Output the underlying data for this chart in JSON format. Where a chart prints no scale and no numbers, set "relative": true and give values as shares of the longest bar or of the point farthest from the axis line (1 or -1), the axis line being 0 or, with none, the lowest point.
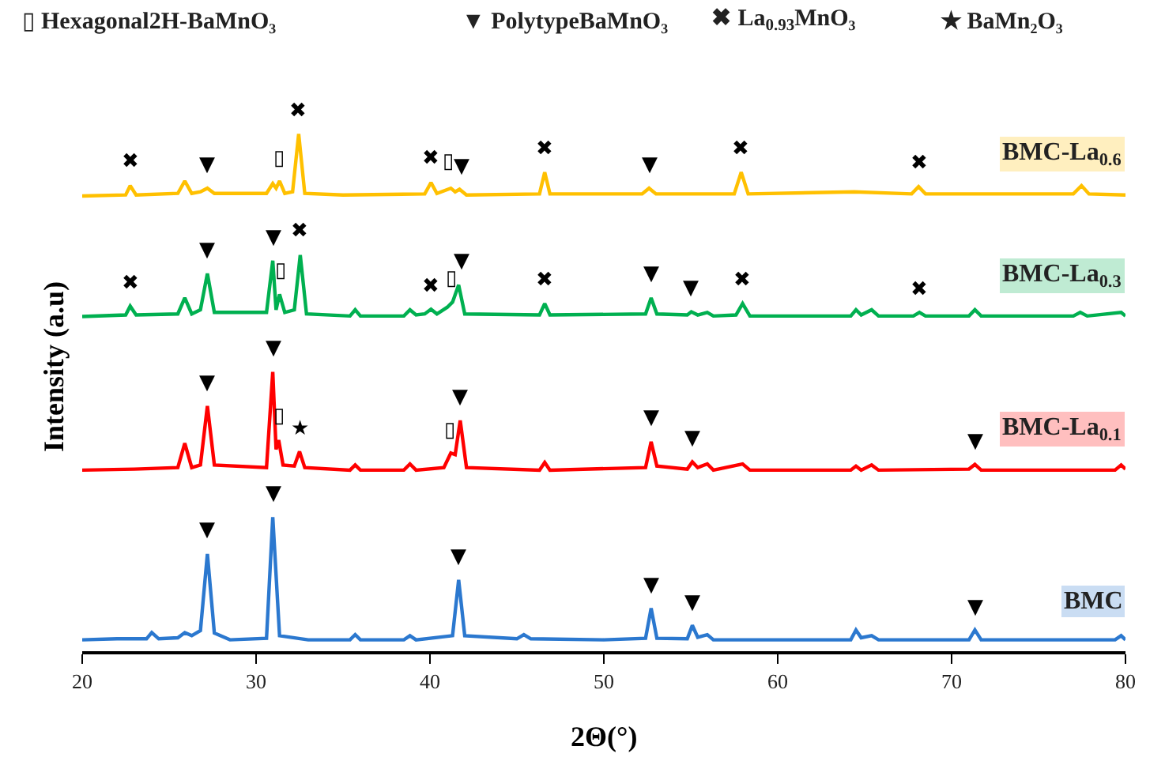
{
  "chart_data": {
    "type": "line",
    "relative": true,
    "xlabel": "2Θ(°)",
    "ylabel": "Intensity (a.u)",
    "xlim": [
      20,
      80
    ],
    "xticks": [
      20,
      30,
      40,
      50,
      60,
      70,
      80
    ],
    "grid": false,
    "legend": false,
    "marker": "none",
    "line_style": "solid",
    "series": [
      {
        "name": "BMC-La$_{0.6}$",
        "color": "#ffc000",
        "x": [
          20,
          22.5,
          22.76,
          23.1,
          25.5,
          25.9,
          26.3,
          26.8,
          27.2,
          27.6,
          30.6,
          30.96,
          31.15,
          31.35,
          31.65,
          32.1,
          32.45,
          32.8,
          35,
          39.7,
          40.06,
          40.4,
          41.2,
          41.45,
          41.7,
          42.1,
          46.3,
          46.6,
          46.9,
          52.2,
          52.6,
          53,
          57.5,
          57.9,
          58.3,
          64.4,
          67.7,
          68.1,
          68.5,
          77,
          77.47,
          77.9,
          80
        ],
        "values": [
          0.88,
          0.882,
          0.9,
          0.882,
          0.885,
          0.909,
          0.885,
          0.888,
          0.895,
          0.885,
          0.885,
          0.904,
          0.895,
          0.909,
          0.885,
          0.888,
          1.0,
          0.885,
          0.882,
          0.884,
          0.906,
          0.885,
          0.895,
          0.888,
          0.893,
          0.882,
          0.884,
          0.926,
          0.884,
          0.884,
          0.895,
          0.884,
          0.884,
          0.926,
          0.884,
          0.888,
          0.884,
          0.898,
          0.884,
          0.884,
          0.9,
          0.884,
          0.882
        ]
      },
      {
        "name": "BMC-La$_{0.3}$",
        "color": "#00b050",
        "x": [
          20,
          22.5,
          22.76,
          23.1,
          25.5,
          25.9,
          26.3,
          26.8,
          27.2,
          27.6,
          30.6,
          30.96,
          31.15,
          31.35,
          31.65,
          32.2,
          32.54,
          32.9,
          35.4,
          35.7,
          36,
          38.5,
          38.85,
          39.2,
          39.7,
          40.06,
          40.4,
          41.0,
          41.3,
          41.65,
          42.0,
          46.3,
          46.6,
          46.9,
          52.4,
          52.72,
          53.05,
          54.8,
          55.03,
          55.4,
          55.95,
          56.3,
          57.6,
          57.98,
          58.4,
          64.2,
          64.5,
          64.8,
          65.4,
          65.8,
          67.8,
          68.15,
          68.5,
          71,
          71.34,
          71.7,
          77,
          77.4,
          77.8,
          79.75,
          80
        ],
        "values": [
          0.647,
          0.65,
          0.667,
          0.65,
          0.652,
          0.683,
          0.652,
          0.66,
          0.73,
          0.655,
          0.655,
          0.755,
          0.66,
          0.69,
          0.655,
          0.66,
          0.766,
          0.652,
          0.648,
          0.66,
          0.648,
          0.648,
          0.66,
          0.65,
          0.652,
          0.661,
          0.652,
          0.665,
          0.675,
          0.708,
          0.652,
          0.65,
          0.672,
          0.65,
          0.652,
          0.683,
          0.652,
          0.65,
          0.656,
          0.65,
          0.655,
          0.648,
          0.65,
          0.672,
          0.648,
          0.648,
          0.66,
          0.65,
          0.66,
          0.648,
          0.648,
          0.655,
          0.648,
          0.648,
          0.66,
          0.648,
          0.648,
          0.655,
          0.648,
          0.655,
          0.648
        ]
      },
      {
        "name": "BMC-La$_{0.1}$",
        "color": "#ff0000",
        "x": [
          20,
          23,
          25.5,
          25.9,
          26.3,
          26.8,
          27.2,
          27.6,
          30.6,
          30.96,
          31.15,
          31.3,
          31.55,
          32.2,
          32.5,
          32.8,
          35.4,
          35.7,
          36,
          38.5,
          38.85,
          39.2,
          40.8,
          41.2,
          41.45,
          41.74,
          42.1,
          46.3,
          46.6,
          46.9,
          52.4,
          52.72,
          53.05,
          54.8,
          55.09,
          55.4,
          55.95,
          56.3,
          57.98,
          58.4,
          64.2,
          64.5,
          64.8,
          65.4,
          65.8,
          71,
          71.34,
          71.7,
          79.4,
          79.75,
          80
        ],
        "values": [
          0.35,
          0.352,
          0.355,
          0.402,
          0.355,
          0.36,
          0.474,
          0.36,
          0.355,
          0.54,
          0.39,
          0.408,
          0.36,
          0.358,
          0.386,
          0.355,
          0.35,
          0.36,
          0.35,
          0.35,
          0.362,
          0.35,
          0.355,
          0.383,
          0.38,
          0.446,
          0.355,
          0.35,
          0.365,
          0.35,
          0.355,
          0.405,
          0.358,
          0.352,
          0.366,
          0.355,
          0.362,
          0.35,
          0.362,
          0.35,
          0.35,
          0.358,
          0.35,
          0.36,
          0.35,
          0.352,
          0.361,
          0.35,
          0.35,
          0.36,
          0.352
        ]
      },
      {
        "name": "BMC",
        "color": "#2b78cf",
        "x": [
          20,
          22,
          23.7,
          24.0,
          24.4,
          25.5,
          25.9,
          26.3,
          26.8,
          27.2,
          27.6,
          28.5,
          30.6,
          30.96,
          31.35,
          33,
          35.4,
          35.7,
          36,
          38.5,
          38.85,
          39.2,
          41.3,
          41.65,
          42,
          45,
          45.4,
          45.8,
          50,
          52.4,
          52.72,
          53.05,
          54.8,
          55.09,
          55.4,
          55.95,
          56.3,
          60,
          64.2,
          64.5,
          64.8,
          65.4,
          65.8,
          71,
          71.34,
          71.7,
          75,
          79.4,
          79.75,
          80
        ],
        "values": [
          0.022,
          0.024,
          0.024,
          0.036,
          0.024,
          0.026,
          0.036,
          0.03,
          0.04,
          0.188,
          0.035,
          0.022,
          0.025,
          0.259,
          0.03,
          0.022,
          0.022,
          0.032,
          0.022,
          0.022,
          0.03,
          0.022,
          0.03,
          0.138,
          0.03,
          0.024,
          0.032,
          0.024,
          0.022,
          0.025,
          0.083,
          0.025,
          0.024,
          0.05,
          0.027,
          0.032,
          0.022,
          0.022,
          0.022,
          0.041,
          0.026,
          0.03,
          0.022,
          0.022,
          0.041,
          0.022,
          0.022,
          0.022,
          0.03,
          0.022
        ]
      }
    ],
    "annotations": [
      "▯ Hexagonal2H-BaMnO₃",
      "▼ PolytypeBaMnO₃",
      "✖ La$_{0.93}$MnO₃",
      "★ BaMn₂O₃",
      {
        "text": "✖",
        "x": 22.76,
        "y": 0.9
      },
      {
        "text": "▼",
        "x": 27.2,
        "y": 0.895
      },
      {
        "text": "▯",
        "x": 31.35,
        "y": 0.909
      },
      {
        "text": "✖",
        "x": 32.45,
        "y": 1.0
      },
      {
        "text": "✖",
        "x": 40.06,
        "y": 0.906
      },
      {
        "text": "▯",
        "x": 41.0,
        "y": 0.9
      },
      {
        "text": "▼",
        "x": 41.8,
        "y": 0.893
      },
      {
        "text": "✖",
        "x": 46.6,
        "y": 0.926
      },
      {
        "text": "▼",
        "x": 52.6,
        "y": 0.895
      },
      {
        "text": "✖",
        "x": 57.9,
        "y": 0.926
      },
      {
        "text": "✖",
        "x": 68.1,
        "y": 0.898
      },
      {
        "text": "✖",
        "x": 22.76,
        "y": 0.667
      },
      {
        "text": "▼",
        "x": 27.2,
        "y": 0.73
      },
      {
        "text": "▼",
        "x": 30.96,
        "y": 0.755
      },
      {
        "text": "▯",
        "x": 31.4,
        "y": 0.69
      },
      {
        "text": "✖",
        "x": 32.54,
        "y": 0.766
      },
      {
        "text": "✖",
        "x": 40.06,
        "y": 0.661
      },
      {
        "text": "▯",
        "x": 41.2,
        "y": 0.675
      },
      {
        "text": "▼",
        "x": 41.8,
        "y": 0.708
      },
      {
        "text": "✖",
        "x": 46.6,
        "y": 0.672
      },
      {
        "text": "▼",
        "x": 52.72,
        "y": 0.683
      },
      {
        "text": "▼",
        "x": 55.03,
        "y": 0.656
      },
      {
        "text": "✖",
        "x": 57.98,
        "y": 0.672
      },
      {
        "text": "✖",
        "x": 68.15,
        "y": 0.655
      },
      {
        "text": "▼",
        "x": 27.2,
        "y": 0.474
      },
      {
        "text": "▼",
        "x": 30.96,
        "y": 0.54
      },
      {
        "text": "▯",
        "x": 31.3,
        "y": 0.408
      },
      {
        "text": "★",
        "x": 32.5,
        "y": 0.386
      },
      {
        "text": "▯",
        "x": 41.1,
        "y": 0.383
      },
      {
        "text": "▼",
        "x": 41.74,
        "y": 0.446
      },
      {
        "text": "▼",
        "x": 52.72,
        "y": 0.405
      },
      {
        "text": "▼",
        "x": 55.09,
        "y": 0.366
      },
      {
        "text": "▼",
        "x": 71.34,
        "y": 0.361
      },
      {
        "text": "▼",
        "x": 27.2,
        "y": 0.188
      },
      {
        "text": "▼",
        "x": 30.96,
        "y": 0.259
      },
      {
        "text": "▼",
        "x": 41.65,
        "y": 0.138
      },
      {
        "text": "▼",
        "x": 52.72,
        "y": 0.083
      },
      {
        "text": "▼",
        "x": 55.09,
        "y": 0.05
      },
      {
        "text": "▼",
        "x": 71.34,
        "y": 0.041
      }
    ]
  }
}
